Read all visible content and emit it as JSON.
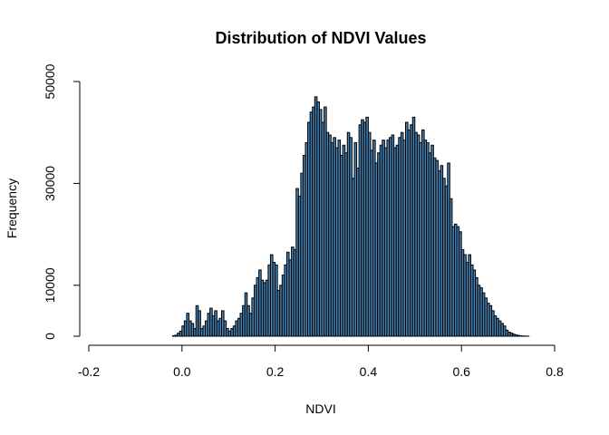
{
  "chart_data": {
    "type": "bar",
    "title": "Distribution of NDVI Values",
    "xlabel": "NDVI",
    "ylabel": "Frequency",
    "bar_color": "#4682B4",
    "edge_color": "#000000",
    "xlim": [
      -0.2,
      0.8
    ],
    "ylim": [
      0,
      50000
    ],
    "x_ticks": [
      -0.2,
      0.0,
      0.2,
      0.4,
      0.6,
      0.8
    ],
    "x_tick_labels": [
      "-0.2",
      "0.0",
      "0.2",
      "0.4",
      "0.6",
      "0.8"
    ],
    "y_ticks": [
      0,
      10000,
      30000,
      50000
    ],
    "y_tick_labels": [
      "0",
      "10000",
      "30000",
      "50000"
    ],
    "bin_width": 0.005,
    "bin_start": -0.09,
    "values": [
      0,
      0,
      0,
      0,
      0,
      0,
      0,
      0,
      0,
      0,
      0,
      0,
      0,
      0,
      100,
      200,
      600,
      1000,
      2000,
      3000,
      4500,
      3000,
      2500,
      1500,
      6000,
      5000,
      1500,
      2000,
      3000,
      4500,
      5500,
      4000,
      5000,
      3000,
      3500,
      5000,
      3000,
      1500,
      1000,
      1500,
      2000,
      3000,
      3500,
      4500,
      6000,
      8500,
      6000,
      4500,
      7500,
      10000,
      11500,
      13000,
      11000,
      10500,
      11000,
      14000,
      16000,
      14500,
      14000,
      9000,
      10000,
      12000,
      14000,
      16500,
      15000,
      17500,
      17000,
      29000,
      27500,
      32000,
      35500,
      38000,
      42000,
      44000,
      45000,
      47000,
      46000,
      44500,
      42000,
      45000,
      40000,
      39500,
      38000,
      39000,
      37000,
      38500,
      35500,
      37500,
      36000,
      40000,
      39000,
      31000,
      38000,
      33000,
      41500,
      42500,
      42000,
      43000,
      40000,
      36500,
      38500,
      34000,
      36000,
      37500,
      38500,
      37000,
      38500,
      39000,
      39500,
      37000,
      37500,
      39000,
      40000,
      38500,
      42000,
      40500,
      41500,
      43000,
      40000,
      39500,
      38000,
      40500,
      38500,
      38000,
      36000,
      37500,
      35000,
      34500,
      32500,
      33500,
      31000,
      29500,
      34000,
      27000,
      21500,
      22000,
      21500,
      20500,
      17000,
      16000,
      14500,
      16000,
      14000,
      13000,
      11500,
      10000,
      9500,
      8500,
      7500,
      6500,
      6000,
      5000,
      4000,
      3500,
      3000,
      2500,
      2000,
      1200,
      800,
      600,
      400,
      250,
      150,
      80,
      40,
      20,
      10,
      0,
      0,
      0
    ]
  }
}
